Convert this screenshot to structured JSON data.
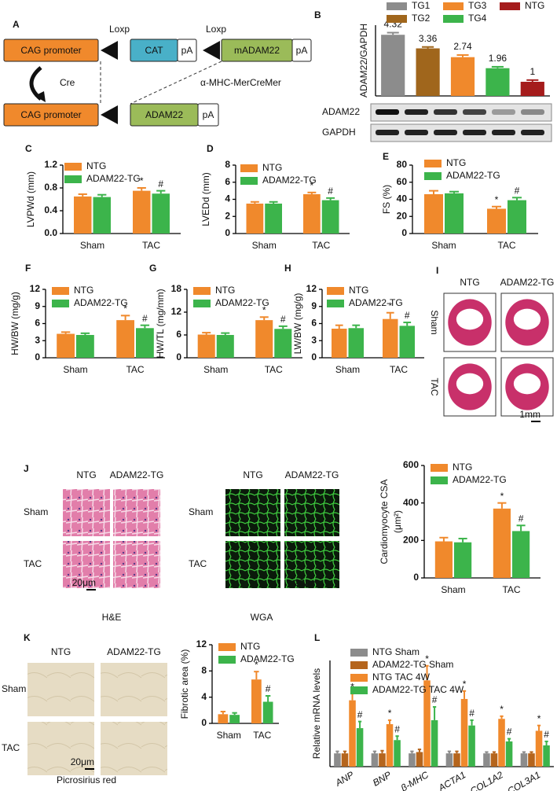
{
  "diagram": {
    "panel": "A",
    "row1": [
      "CAG promoter",
      "CAT",
      "pA",
      "mADAM22",
      "pA"
    ],
    "loxp": [
      "Loxp",
      "Loxp"
    ],
    "cre": "Cre",
    "driver": "α-MHC-MerCreMer",
    "row2": [
      "CAG promoter",
      "ADAM22",
      "pA"
    ]
  },
  "histology": [
    {
      "panel": "I",
      "columns": [
        "NTG",
        "ADAM22-TG"
      ],
      "rows": [
        "Sham",
        "TAC"
      ],
      "scale": "1mm"
    },
    {
      "panel": "J",
      "columns": [
        "NTG",
        "ADAM22-TG"
      ],
      "rows": [
        "Sham",
        "TAC"
      ],
      "scale": "20μm",
      "caption": "H&E"
    },
    {
      "columns": [
        "NTG",
        "ADAM22-TG"
      ],
      "rows": [
        "Sham",
        "TAC"
      ],
      "scale": "20μm",
      "caption": "WGA"
    },
    {
      "panel": "K",
      "columns": [
        "NTG",
        "ADAM22-TG"
      ],
      "rows": [
        "Sham",
        "TAC"
      ],
      "scale": "20μm",
      "caption": "Picrosirius red"
    }
  ],
  "chart_data": [
    {
      "type": "bar",
      "panel": "B",
      "ylabel": "ADAM22/GAPDH",
      "categories": [
        "TG1",
        "TG2",
        "TG3",
        "TG4",
        "NTG"
      ],
      "values": [
        4.32,
        3.36,
        2.74,
        1.96,
        1
      ],
      "errors": [
        0.15,
        0.1,
        0.15,
        0.1,
        0.12
      ],
      "colors": [
        "#8c8c8c",
        "#a0661c",
        "#f0892c",
        "#3cb44b",
        "#a51c1c"
      ],
      "ylim": [
        0,
        5
      ],
      "blot_labels": [
        "ADAM22",
        "GAPDH"
      ]
    },
    {
      "type": "bar",
      "panel": "C",
      "ylabel": "LVPWd (mm)",
      "categories": [
        "Sham",
        "TAC"
      ],
      "ylim": [
        0,
        1.2
      ],
      "yticks": [
        {
          "value": 0,
          "label": "0.0"
        },
        0.4,
        0.8,
        1.2
      ],
      "series": [
        {
          "name": "NTG",
          "color": "#f0892c",
          "values": [
            0.65,
            0.75
          ],
          "errors": [
            0.04,
            0.05
          ],
          "markers": [
            null,
            "*"
          ]
        },
        {
          "name": "ADAM22-TG",
          "color": "#3cb44b",
          "values": [
            0.64,
            0.7
          ],
          "errors": [
            0.04,
            0.05
          ],
          "markers": [
            null,
            "#"
          ]
        }
      ]
    },
    {
      "type": "bar",
      "panel": "D",
      "ylabel": "LVEDd (mm)",
      "categories": [
        "Sham",
        "TAC"
      ],
      "ylim": [
        0,
        8
      ],
      "yticks": [
        0,
        2,
        4,
        6,
        8
      ],
      "series": [
        {
          "name": "NTG",
          "color": "#f0892c",
          "values": [
            3.5,
            4.6
          ],
          "errors": [
            0.2,
            0.2
          ],
          "markers": [
            null,
            "*"
          ]
        },
        {
          "name": "ADAM22-TG",
          "color": "#3cb44b",
          "values": [
            3.5,
            3.9
          ],
          "errors": [
            0.2,
            0.25
          ],
          "markers": [
            null,
            "#"
          ]
        }
      ]
    },
    {
      "type": "bar",
      "panel": "E",
      "ylabel": "FS (%)",
      "categories": [
        "Sham",
        "TAC"
      ],
      "ylim": [
        0,
        80
      ],
      "yticks": [
        0,
        20,
        40,
        60,
        80
      ],
      "series": [
        {
          "name": "NTG",
          "color": "#f0892c",
          "values": [
            46,
            29
          ],
          "errors": [
            4,
            2.5
          ],
          "markers": [
            null,
            "*"
          ]
        },
        {
          "name": "ADAM22-TG",
          "color": "#3cb44b",
          "values": [
            47,
            39
          ],
          "errors": [
            2,
            3
          ],
          "markers": [
            null,
            "#"
          ]
        }
      ]
    },
    {
      "type": "bar",
      "panel": "F",
      "ylabel": "HW/BW (mg/g)",
      "categories": [
        "Sham",
        "TAC"
      ],
      "ylim": [
        0,
        12
      ],
      "yticks": [
        0,
        3,
        6,
        9,
        12
      ],
      "series": [
        {
          "name": "NTG",
          "color": "#f0892c",
          "values": [
            4.2,
            6.6
          ],
          "errors": [
            0.3,
            0.8
          ],
          "markers": [
            null,
            "*"
          ]
        },
        {
          "name": "ADAM22-TG",
          "color": "#3cb44b",
          "values": [
            4.0,
            5.2
          ],
          "errors": [
            0.3,
            0.5
          ],
          "markers": [
            null,
            "#"
          ]
        }
      ]
    },
    {
      "type": "bar",
      "panel": "G",
      "ylabel": "HW/TL (mg/mm)",
      "categories": [
        "Sham",
        "TAC"
      ],
      "ylim": [
        0,
        18
      ],
      "yticks": [
        0,
        6,
        12,
        18
      ],
      "series": [
        {
          "name": "NTG",
          "color": "#f0892c",
          "values": [
            6.1,
            9.9
          ],
          "errors": [
            0.5,
            0.8
          ],
          "markers": [
            null,
            "*"
          ]
        },
        {
          "name": "ADAM22-TG",
          "color": "#3cb44b",
          "values": [
            6.0,
            7.6
          ],
          "errors": [
            0.5,
            0.7
          ],
          "markers": [
            null,
            "#"
          ]
        }
      ]
    },
    {
      "type": "bar",
      "panel": "H",
      "ylabel": "LW/BW (mg/g)",
      "categories": [
        "Sham",
        "TAC"
      ],
      "ylim": [
        0,
        12
      ],
      "yticks": [
        0,
        3,
        6,
        9,
        12
      ],
      "series": [
        {
          "name": "NTG",
          "color": "#f0892c",
          "values": [
            5.1,
            6.8
          ],
          "errors": [
            0.6,
            1.1
          ],
          "markers": [
            null,
            "*"
          ]
        },
        {
          "name": "ADAM22-TG",
          "color": "#3cb44b",
          "values": [
            5.2,
            5.6
          ],
          "errors": [
            0.5,
            0.6
          ],
          "markers": [
            null,
            "#"
          ]
        }
      ]
    },
    {
      "type": "bar",
      "ylabel": "Cardiomyocyte CSA",
      "ylabel_unit": "(μm²)",
      "categories": [
        "Sham",
        "TAC"
      ],
      "ylim": [
        0,
        600
      ],
      "yticks": [
        0,
        200,
        400,
        600
      ],
      "series": [
        {
          "name": "NTG",
          "color": "#f0892c",
          "values": [
            195,
            370
          ],
          "errors": [
            20,
            30
          ],
          "markers": [
            null,
            "*"
          ]
        },
        {
          "name": "ADAM22-TG",
          "color": "#3cb44b",
          "values": [
            190,
            250
          ],
          "errors": [
            20,
            30
          ],
          "markers": [
            null,
            "#"
          ]
        }
      ]
    },
    {
      "type": "bar",
      "ylabel": "Fibrotic area (%)",
      "categories": [
        "Sham",
        "TAC"
      ],
      "ylim": [
        0,
        12
      ],
      "yticks": [
        0,
        4,
        8,
        12
      ],
      "series": [
        {
          "name": "NTG",
          "color": "#f0892c",
          "values": [
            1.4,
            6.7
          ],
          "errors": [
            0.4,
            1.2
          ],
          "markers": [
            null,
            "*"
          ]
        },
        {
          "name": "ADAM22-TG",
          "color": "#3cb44b",
          "values": [
            1.3,
            3.3
          ],
          "errors": [
            0.3,
            0.9
          ],
          "markers": [
            null,
            "#"
          ]
        }
      ]
    },
    {
      "type": "bar",
      "panel": "L",
      "ylabel": "Relative mRNA levels",
      "categories": [
        "ANP",
        "BNP",
        "β-MHC",
        "ACTA1",
        "COL1A2",
        "COL3A1"
      ],
      "ylim": [
        0,
        8
      ],
      "series": [
        {
          "name": "NTG Sham",
          "color": "#8c8c8c",
          "values": [
            1,
            1,
            1,
            1,
            1,
            1
          ],
          "errors": [
            0.15,
            0.15,
            0.15,
            0.15,
            0.1,
            0.1
          ],
          "markers": [
            null,
            null,
            null,
            null,
            null,
            null
          ]
        },
        {
          "name": "ADAM22-TG Sham",
          "color": "#b5651d",
          "values": [
            1,
            1,
            1.1,
            1,
            1,
            1
          ],
          "errors": [
            0.15,
            0.2,
            0.2,
            0.15,
            0.1,
            0.1
          ],
          "markers": [
            null,
            null,
            null,
            null,
            null,
            null
          ]
        },
        {
          "name": "NTG TAC 4W",
          "color": "#f0892c",
          "values": [
            5,
            3.2,
            6.5,
            5.1,
            3.6,
            2.7
          ],
          "errors": [
            0.5,
            0.3,
            1.1,
            0.6,
            0.2,
            0.4
          ],
          "markers": [
            "*",
            "*",
            "*",
            "*",
            "*",
            "*"
          ]
        },
        {
          "name": "ADAM22-TG TAC 4W",
          "color": "#3cb44b",
          "values": [
            2.9,
            2.0,
            3.5,
            3.1,
            1.9,
            1.6
          ],
          "errors": [
            0.5,
            0.3,
            1.0,
            0.4,
            0.2,
            0.3
          ],
          "markers": [
            "#",
            "#",
            "#",
            "#",
            "#",
            "#"
          ]
        }
      ]
    }
  ]
}
